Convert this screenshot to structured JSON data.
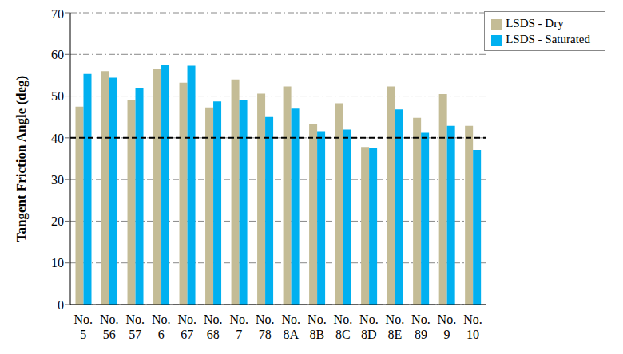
{
  "chart_data": {
    "type": "bar",
    "y_label": "Tangent Friction Angle (deg)",
    "categories": [
      "No. 5",
      "No. 56",
      "No. 57",
      "No. 6",
      "No. 67",
      "No. 68",
      "No. 7",
      "No. 78",
      "No. 8A",
      "No. 8B",
      "No. 8C",
      "No. 8D",
      "No. 8E",
      "No. 89",
      "No. 9",
      "No. 10"
    ],
    "series": [
      {
        "name": "LSDS - Dry",
        "color": "#c4bc96",
        "values": [
          47.5,
          56,
          49,
          56.4,
          53.2,
          47.3,
          54,
          50.6,
          52.3,
          43.4,
          48.3,
          37.8,
          52.3,
          44.8,
          50.5,
          42.9
        ]
      },
      {
        "name": "LSDS - Saturated",
        "color": "#00b0f0",
        "values": [
          55.3,
          54.4,
          52,
          57.5,
          57.3,
          48.7,
          49,
          45,
          47,
          41.6,
          42,
          37.5,
          46.8,
          41.2,
          42.9,
          37.1
        ]
      }
    ],
    "reference_line": 40,
    "ylim": [
      0,
      70
    ],
    "yticks": [
      0,
      10,
      20,
      30,
      40,
      50,
      60,
      70
    ],
    "grid": true,
    "legend": "upper right"
  }
}
